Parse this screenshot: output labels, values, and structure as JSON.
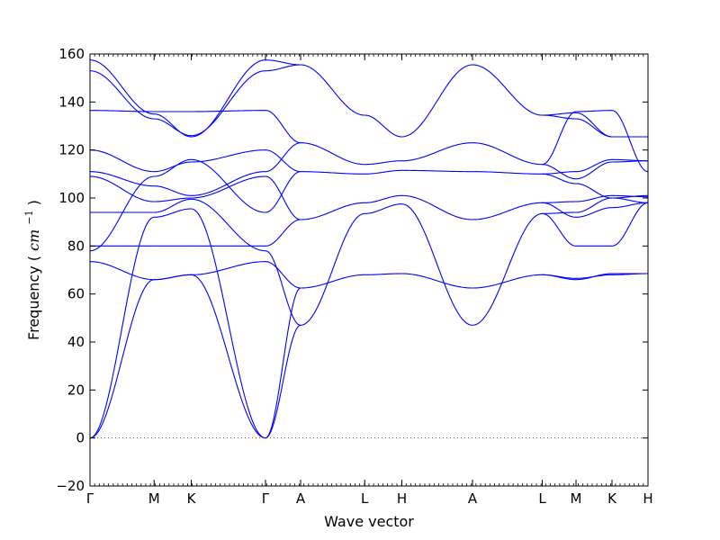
{
  "chart_data": {
    "type": "line",
    "xlabel": "Wave vector",
    "ylabel": "Frequency",
    "ylabel_unit_base": "cm",
    "ylabel_unit_exp": "−1",
    "ylim": [
      -20,
      160
    ],
    "y_ticks": [
      -20,
      0,
      20,
      40,
      60,
      80,
      100,
      120,
      140,
      160
    ],
    "grid": false,
    "legend": "none",
    "line_color": "#0000ff",
    "zero_line": {
      "y": 0,
      "style": "dotted",
      "color": "#555555"
    },
    "path_points": [
      {
        "label": "Γ",
        "x": 0
      },
      {
        "label": "M",
        "x": 0.1149
      },
      {
        "label": "K",
        "x": 0.1815
      },
      {
        "label": "Γ",
        "x": 0.3145
      },
      {
        "label": "A",
        "x": 0.3774
      },
      {
        "label": "L",
        "x": 0.4923
      },
      {
        "label": "H",
        "x": 0.5589
      },
      {
        "label": "A",
        "x": 0.6855
      },
      {
        "label": "L",
        "x": 0.8105
      },
      {
        "label": "M",
        "x": 0.871
      },
      {
        "label": "K",
        "x": 0.9355
      },
      {
        "label": "H",
        "x": 1.0
      }
    ],
    "segments": [
      {
        "name": "Γ-M",
        "x_start": 0,
        "x_end": 0.1149,
        "bands": [
          [
            0,
            66
          ],
          [
            0,
            92
          ],
          [
            73.5,
            66
          ],
          [
            78,
            109
          ],
          [
            80,
            80
          ],
          [
            94,
            94
          ],
          [
            109,
            98.5
          ],
          [
            111,
            105
          ],
          [
            120,
            111
          ],
          [
            136.5,
            136
          ],
          [
            153,
            133
          ],
          [
            157.5,
            135
          ]
        ]
      },
      {
        "name": "M-K",
        "x_start": 0.1149,
        "x_end": 0.1815,
        "bands": [
          [
            66,
            68
          ],
          [
            92,
            95.5
          ],
          [
            66,
            68
          ],
          [
            109,
            116
          ],
          [
            80,
            80
          ],
          [
            94,
            99.5
          ],
          [
            98.5,
            100
          ],
          [
            105,
            101
          ],
          [
            111,
            115
          ],
          [
            136,
            136
          ],
          [
            133,
            126
          ],
          [
            135,
            125.5
          ]
        ]
      },
      {
        "name": "K-Γ",
        "x_start": 0.1815,
        "x_end": 0.3145,
        "bands": [
          [
            68,
            0
          ],
          [
            95.5,
            0
          ],
          [
            68,
            73.5
          ],
          [
            116,
            94
          ],
          [
            80,
            80
          ],
          [
            99.5,
            78
          ],
          [
            100,
            109
          ],
          [
            101,
            111
          ],
          [
            115,
            120
          ],
          [
            136,
            136.5
          ],
          [
            126,
            153
          ],
          [
            125.5,
            157.5
          ]
        ]
      },
      {
        "name": "Γ-A",
        "x_start": 0.3145,
        "x_end": 0.3774,
        "bands": [
          [
            0,
            47
          ],
          [
            0,
            62.5
          ],
          [
            73.5,
            62.5
          ],
          [
            94,
            111
          ],
          [
            80,
            91
          ],
          [
            78,
            47
          ],
          [
            109,
            91
          ],
          [
            111,
            123
          ],
          [
            120,
            111
          ],
          [
            136.5,
            123
          ],
          [
            153,
            155.5
          ],
          [
            157.5,
            155.5
          ]
        ]
      },
      {
        "name": "A-L",
        "x_start": 0.3774,
        "x_end": 0.4923,
        "bands": [
          [
            47,
            93.5
          ],
          [
            62.5,
            68
          ],
          [
            91,
            98
          ],
          [
            111,
            110
          ],
          [
            123,
            114
          ],
          [
            155.5,
            134.5
          ]
        ]
      },
      {
        "name": "L-H",
        "x_start": 0.4923,
        "x_end": 0.5589,
        "bands": [
          [
            93.5,
            97.5
          ],
          [
            68,
            68.5
          ],
          [
            98,
            101
          ],
          [
            110,
            111.5
          ],
          [
            114,
            115.5
          ],
          [
            134.5,
            125.5
          ]
        ]
      },
      {
        "name": "H-A",
        "x_start": 0.5589,
        "x_end": 0.6855,
        "bands": [
          [
            97.5,
            47
          ],
          [
            68.5,
            62.5
          ],
          [
            101,
            91
          ],
          [
            111.5,
            111
          ],
          [
            115.5,
            123
          ],
          [
            125.5,
            155.5
          ]
        ]
      },
      {
        "name": "A-L",
        "x_start": 0.6855,
        "x_end": 0.8105,
        "bands": [
          [
            47,
            93.5
          ],
          [
            62.5,
            68
          ],
          [
            91,
            98
          ],
          [
            111,
            110
          ],
          [
            123,
            114
          ],
          [
            155.5,
            134.5
          ]
        ]
      },
      {
        "name": "L-M",
        "x_start": 0.8105,
        "x_end": 0.871,
        "bands": [
          [
            93.5,
            94
          ],
          [
            68,
            66
          ],
          [
            98,
            92
          ],
          [
            110,
            111
          ],
          [
            114,
            136
          ],
          [
            134.5,
            133
          ],
          [
            93.5,
            80
          ],
          [
            68,
            66.5
          ],
          [
            98,
            98.5
          ],
          [
            110,
            106
          ],
          [
            114,
            108
          ],
          [
            134.5,
            135.5
          ]
        ]
      },
      {
        "name": "M-K",
        "x_start": 0.871,
        "x_end": 0.9355,
        "bands": [
          [
            94,
            100
          ],
          [
            66,
            68.5
          ],
          [
            92,
            96
          ],
          [
            111,
            116
          ],
          [
            136,
            136.5
          ],
          [
            133,
            125.5
          ],
          [
            80,
            80
          ],
          [
            66.5,
            68
          ],
          [
            98.5,
            101
          ],
          [
            106,
            100
          ],
          [
            108,
            115
          ],
          [
            135.5,
            125.5
          ]
        ]
      },
      {
        "name": "K-H",
        "x_start": 0.9355,
        "x_end": 1.0,
        "bands": [
          [
            100,
            98
          ],
          [
            68.5,
            68.5
          ],
          [
            96,
            98
          ],
          [
            116,
            115.5
          ],
          [
            136.5,
            111
          ],
          [
            125.5,
            125.5
          ],
          [
            80,
            98
          ],
          [
            68,
            68.5
          ],
          [
            101,
            100.5
          ],
          [
            100,
            101
          ],
          [
            115,
            115.5
          ],
          [
            125.5,
            125.5
          ]
        ]
      }
    ]
  }
}
